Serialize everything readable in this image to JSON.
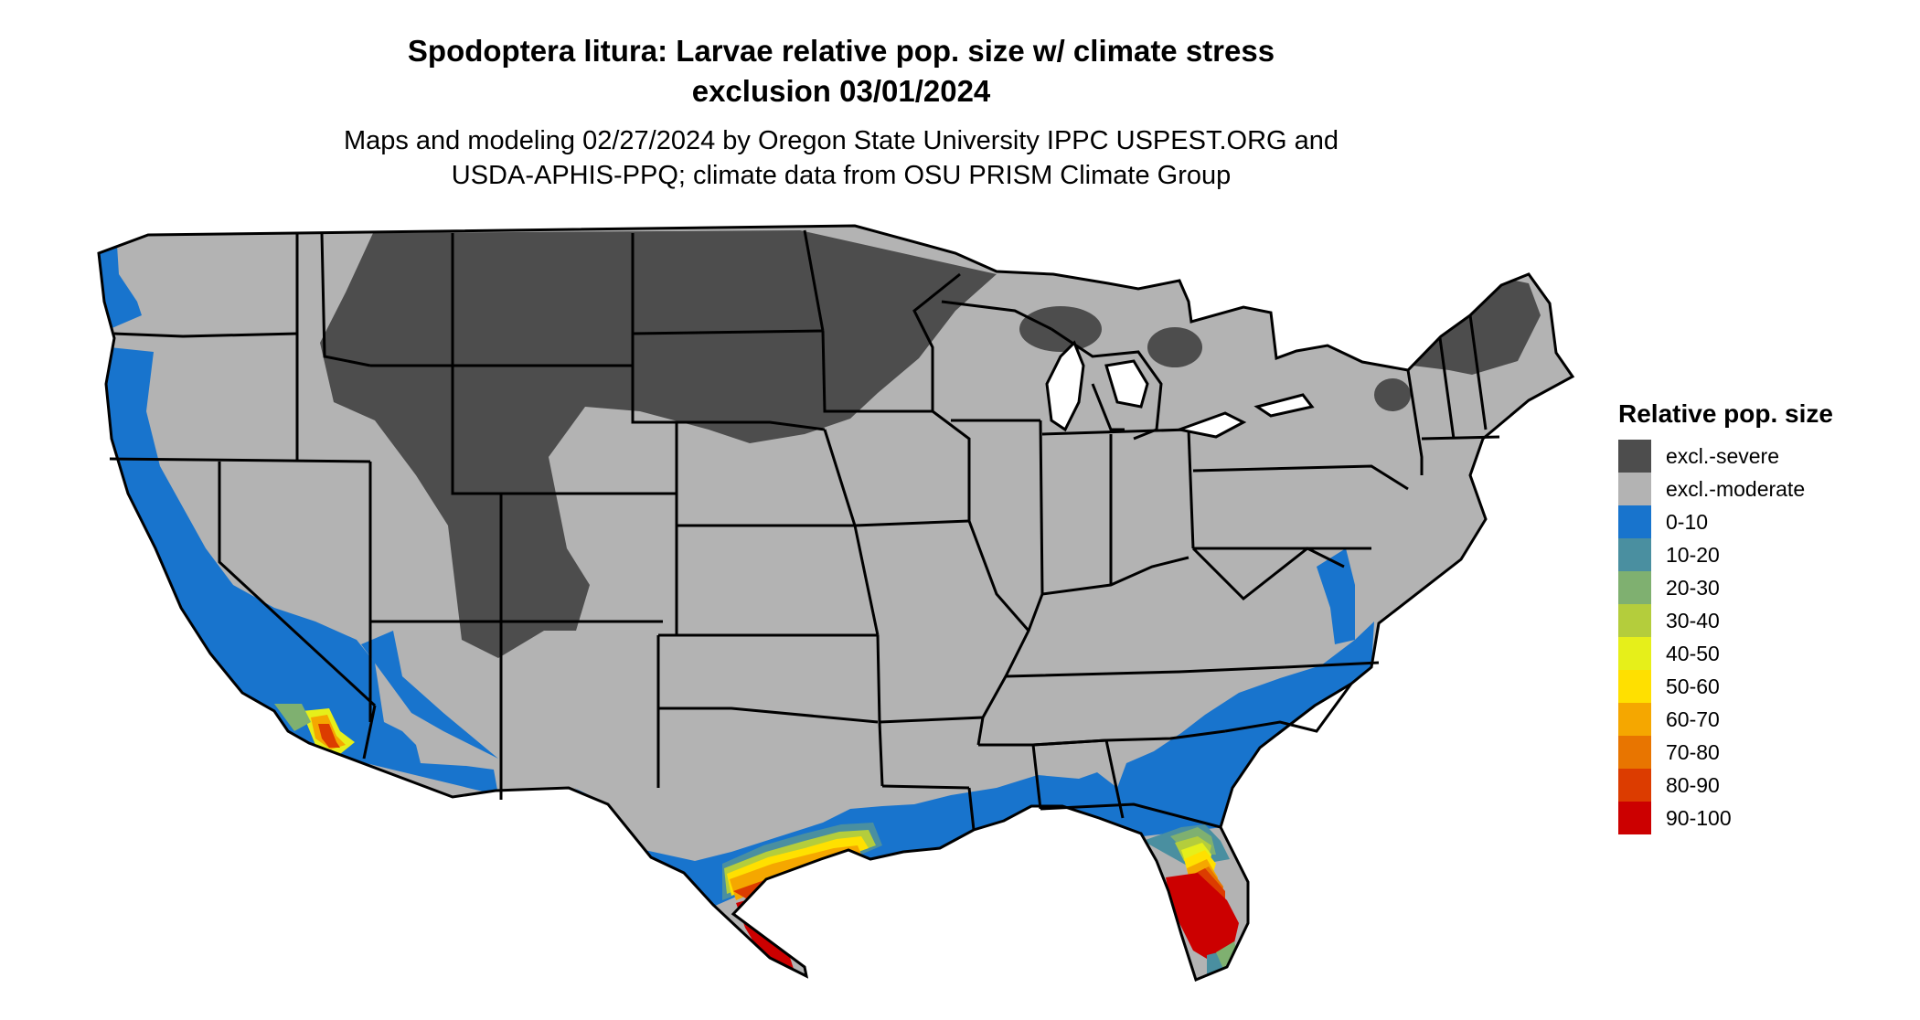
{
  "header": {
    "title_line1": "Spodoptera litura: Larvae relative pop. size w/ climate stress",
    "title_line2": "exclusion 03/01/2024",
    "subtitle_line1": "Maps and modeling 02/27/2024 by Oregon State University IPPC USPEST.ORG and",
    "subtitle_line2": "USDA-APHIS-PPQ; climate data from OSU PRISM Climate Group"
  },
  "legend": {
    "title": "Relative pop. size",
    "items": [
      {
        "label": "excl.-severe",
        "color": "#4d4d4d"
      },
      {
        "label": "excl.-moderate",
        "color": "#b3b3b3"
      },
      {
        "label": "0-10",
        "color": "#1874cd"
      },
      {
        "label": "10-20",
        "color": "#4a8fa0"
      },
      {
        "label": "20-30",
        "color": "#7fb070"
      },
      {
        "label": "30-40",
        "color": "#b4cd3c"
      },
      {
        "label": "40-50",
        "color": "#e6ef1a"
      },
      {
        "label": "50-60",
        "color": "#ffe000"
      },
      {
        "label": "60-70",
        "color": "#f5a700"
      },
      {
        "label": "70-80",
        "color": "#e87500"
      },
      {
        "label": "80-90",
        "color": "#dc3c00"
      },
      {
        "label": "90-100",
        "color": "#cc0000"
      }
    ]
  },
  "map": {
    "region": "Contiguous United States",
    "base_fill": "#b3b3b3",
    "border_color": "#000000"
  }
}
